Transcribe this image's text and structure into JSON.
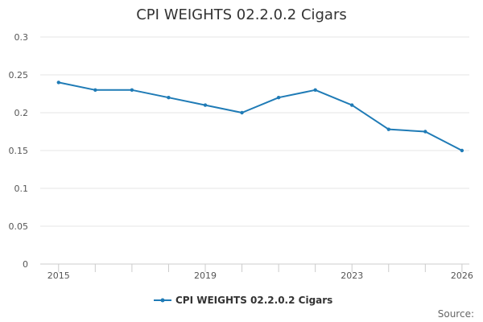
{
  "chart_data": {
    "type": "line",
    "title": "CPI WEIGHTS 02.2.0.2 Cigars",
    "xlabel": "",
    "ylabel": "",
    "xlim": [
      2015,
      2026
    ],
    "ylim": [
      0,
      0.3
    ],
    "grid": true,
    "legend_position": "bottom",
    "x_ticks": [
      2015,
      2019,
      2023,
      2026
    ],
    "x_tick_labels": [
      "2015",
      "2019",
      "2023",
      "2026"
    ],
    "y_ticks": [
      0,
      0.05,
      0.1,
      0.15,
      0.2,
      0.25,
      0.3
    ],
    "y_tick_labels": [
      "0",
      "0.05",
      "0.1",
      "0.15",
      "0.2",
      "0.25",
      "0.3"
    ],
    "x": [
      2015,
      2016,
      2017,
      2018,
      2019,
      2020,
      2021,
      2022,
      2023,
      2024,
      2025,
      2026
    ],
    "series": [
      {
        "name": "CPI WEIGHTS 02.2.0.2 Cigars",
        "color": "#1f7bb6",
        "values": [
          0.24,
          0.23,
          0.23,
          0.22,
          0.21,
          0.2,
          0.22,
          0.23,
          0.21,
          0.178,
          0.175,
          0.15
        ]
      }
    ],
    "source_label": "Source:"
  }
}
